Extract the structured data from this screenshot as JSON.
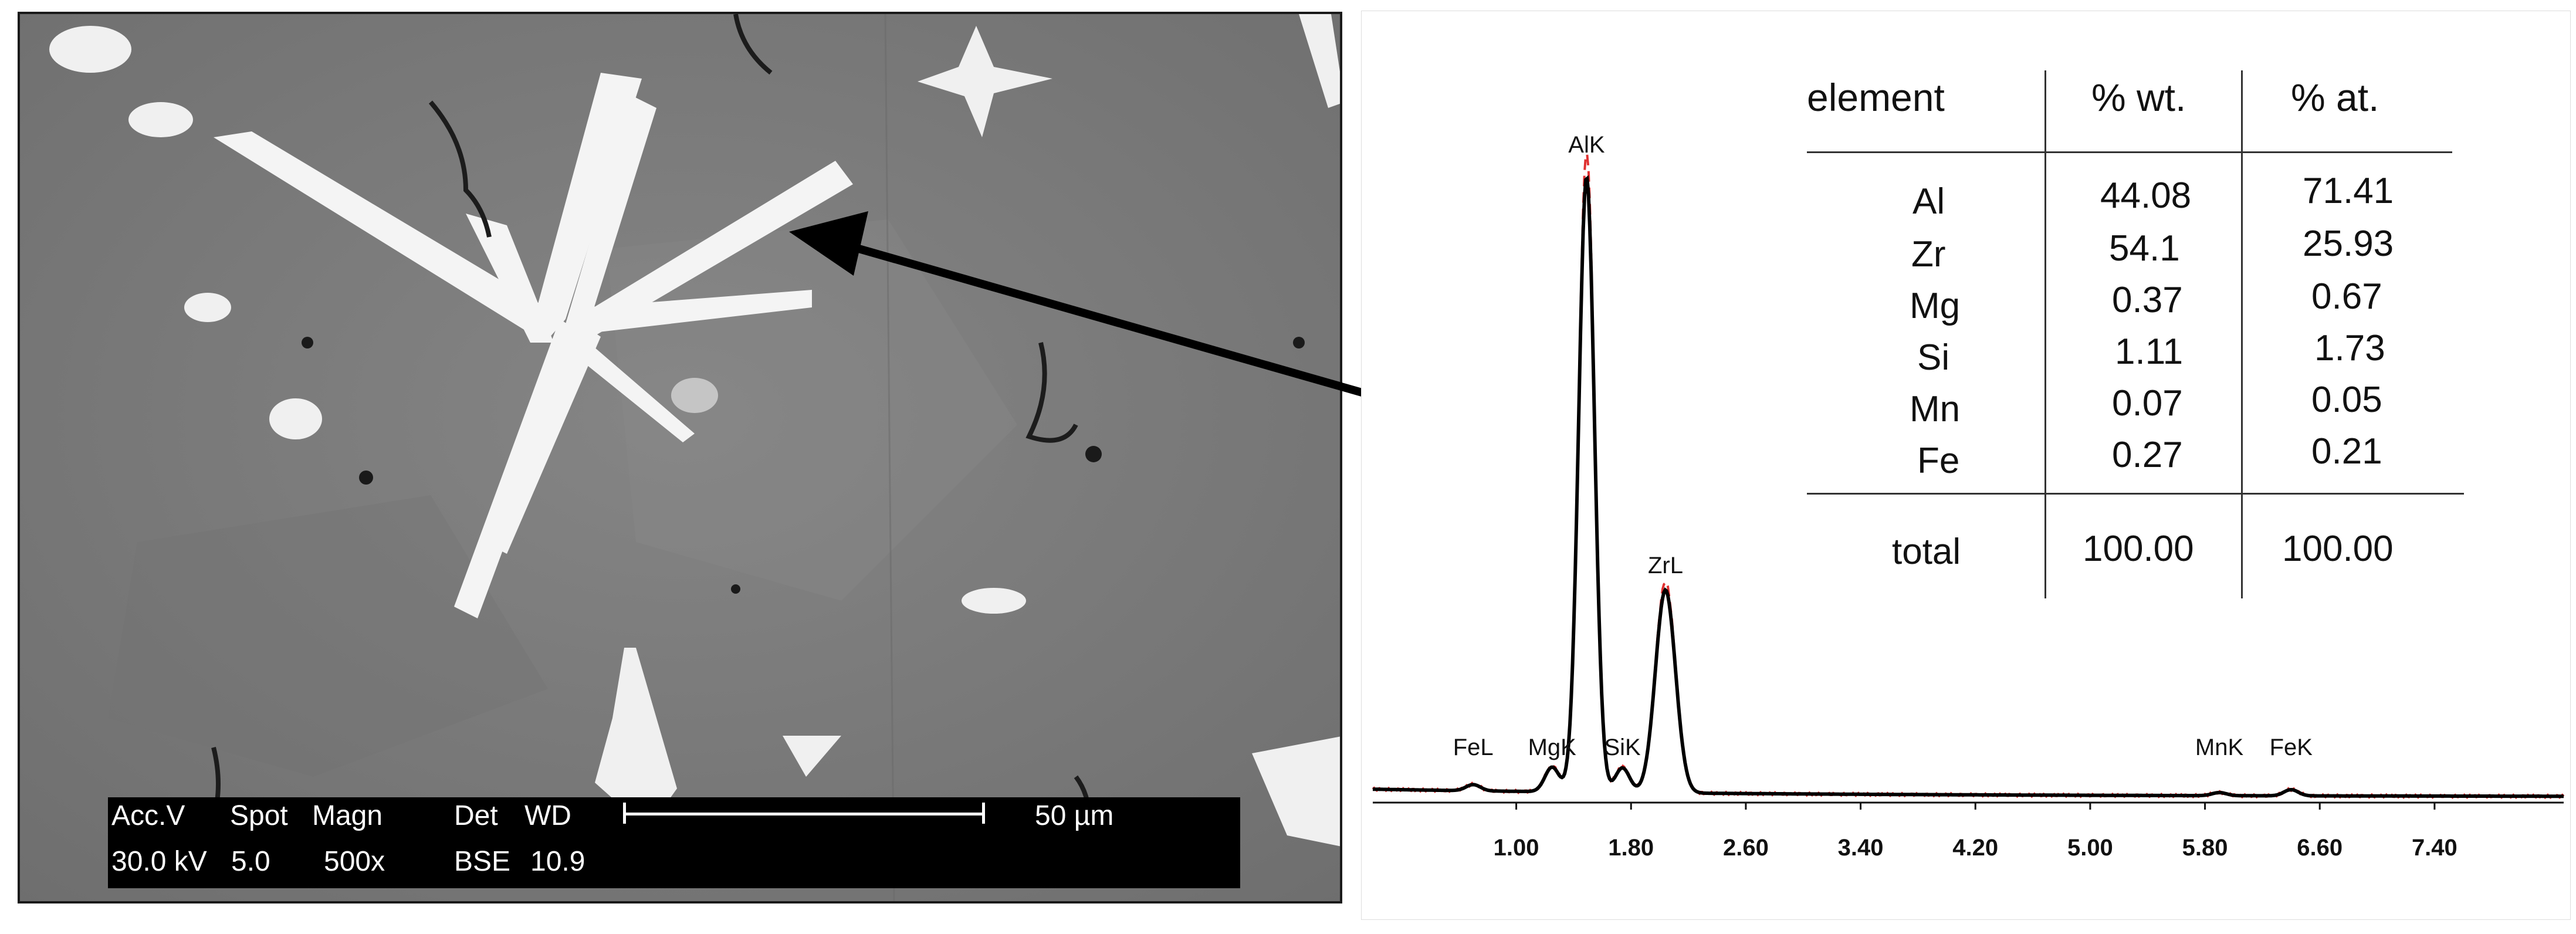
{
  "sem": {
    "databar": {
      "acc_v_label": "Acc.V",
      "spot_label": "Spot",
      "magn_label": "Magn",
      "det_label": "Det",
      "wd_label": "WD",
      "acc_v": "30.0 kV",
      "spot": "5.0",
      "magn": "500x",
      "det": "BSE",
      "wd": "10.9",
      "scale_bar": "50 µm"
    }
  },
  "colors": {
    "spectrum_line": "#000000",
    "reference_line": "#e03030",
    "arrow": "#000000"
  },
  "table": {
    "headers": [
      "element",
      "% wt.",
      "% at."
    ],
    "rows": [
      {
        "element": "Al",
        "wt": "44.08",
        "at": "71.41"
      },
      {
        "element": "Zr",
        "wt": "54.1",
        "at": "25.93"
      },
      {
        "element": "Mg",
        "wt": "0.37",
        "at": "0.67"
      },
      {
        "element": "Si",
        "wt": "1.11",
        "at": "1.73"
      },
      {
        "element": "Mn",
        "wt": "0.07",
        "at": "0.05"
      },
      {
        "element": "Fe",
        "wt": "0.27",
        "at": "0.21"
      }
    ],
    "total": {
      "label": "total",
      "wt": "100.00",
      "at": "100.00"
    }
  },
  "chart_data": {
    "type": "line",
    "xlabel": "",
    "ylabel": "",
    "x_ticks": [
      "1.00",
      "1.80",
      "2.60",
      "3.40",
      "4.20",
      "5.00",
      "5.80",
      "6.60",
      "7.40"
    ],
    "xlim": [
      0.0,
      8.3
    ],
    "grid": false,
    "peaks": [
      {
        "label": "FeL",
        "x": 0.7,
        "rel_height": 0.01
      },
      {
        "label": "MgK",
        "x": 1.25,
        "rel_height": 0.04
      },
      {
        "label": "AlK",
        "x": 1.49,
        "rel_height": 1.0
      },
      {
        "label": "SiK",
        "x": 1.74,
        "rel_height": 0.04
      },
      {
        "label": "ZrL",
        "x": 2.04,
        "rel_height": 0.33
      },
      {
        "label": "MnK",
        "x": 5.9,
        "rel_height": 0.005
      },
      {
        "label": "FeK",
        "x": 6.4,
        "rel_height": 0.01
      }
    ]
  }
}
